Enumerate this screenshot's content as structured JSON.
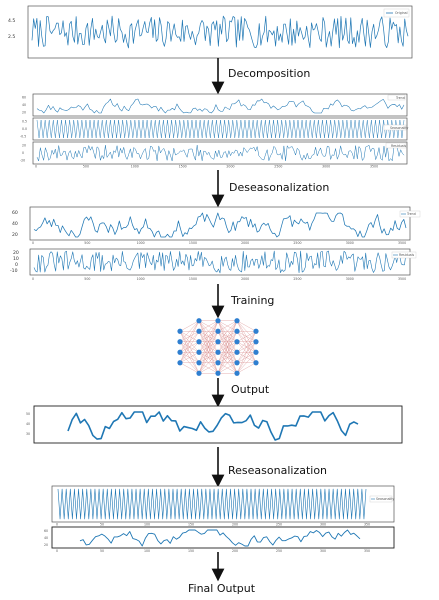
{
  "colors": {
    "series": "#1f77b4",
    "arrow": "#111111",
    "node": "#2f7fd0",
    "edge": "#d98c8c"
  },
  "steps": {
    "decomposition": "Decomposition",
    "deseasonalization": "Deseasonalization",
    "training": "Training",
    "output": "Output",
    "reseasonalization": "Reseasonalization",
    "final_output": "Final Output"
  },
  "original_panel": {
    "legend": "Original",
    "y_ticks": [
      "4.5",
      "2.5"
    ]
  },
  "decomposition_panels": {
    "trend_legend": "Trend",
    "trend_y_ticks": [
      "60",
      "40",
      "20"
    ],
    "seasonal_legend": "Seasonality",
    "seasonal_y_ticks": [
      "0.5",
      "0.0",
      "-0.5"
    ],
    "residual_legend": "Residuals",
    "residual_y_ticks": [
      "20",
      "0",
      "-20"
    ],
    "x_ticks": [
      "0",
      "500",
      "1000",
      "1500",
      "2000",
      "2500",
      "3000",
      "3500"
    ]
  },
  "deseasonal_panels": {
    "trend_legend": "Trend",
    "trend_y_ticks": [
      "60",
      "40",
      "20"
    ],
    "trend_x_ticks": [
      "0",
      "500",
      "1000",
      "1500",
      "2000",
      "2500",
      "3000",
      "3500"
    ],
    "residual_legend": "Residuals",
    "residual_y_ticks": [
      "20",
      "10",
      "0",
      "-10"
    ],
    "residual_x_ticks": [
      "0",
      "500",
      "1000",
      "1500",
      "2000",
      "2500",
      "3000",
      "3500"
    ]
  },
  "output_panel": {
    "y_ticks": [
      "50",
      "40",
      "30"
    ]
  },
  "reseasonal_panels": {
    "seasonal_legend": "Seasonality",
    "seasonal_x_ticks": [
      "0",
      "50",
      "100",
      "150",
      "200",
      "250",
      "300",
      "350"
    ],
    "final_y_ticks": [
      "60",
      "40",
      "20"
    ],
    "final_x_ticks": [
      "0",
      "50",
      "100",
      "150",
      "200",
      "250",
      "300",
      "350"
    ]
  },
  "network": {
    "layers": [
      4,
      6,
      6,
      6,
      4
    ]
  }
}
